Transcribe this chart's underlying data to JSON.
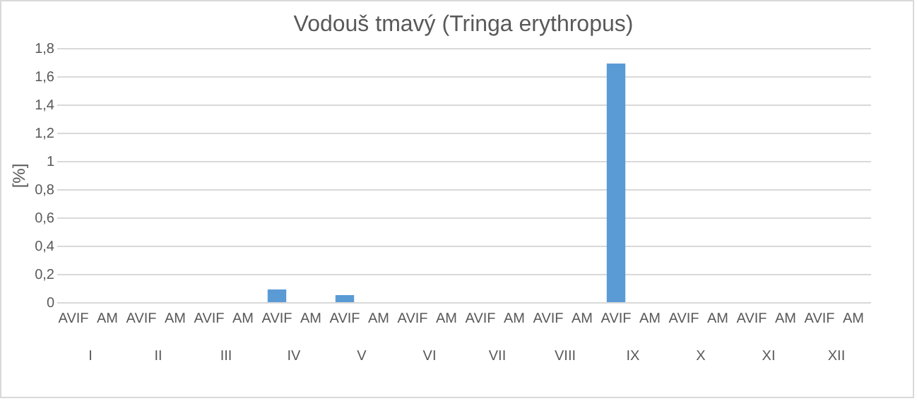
{
  "chart_data": {
    "type": "bar",
    "title": "Vodouš tmavý (Tringa erythropus)",
    "ylabel": "[%]",
    "categories": [
      "AVIF",
      "AM",
      "AVIF",
      "AM",
      "AVIF",
      "AM",
      "AVIF",
      "AM",
      "AVIF",
      "AM",
      "AVIF",
      "AM",
      "AVIF",
      "AM",
      "AVIF",
      "AM",
      "AVIF",
      "AM",
      "AVIF",
      "AM",
      "AVIF",
      "AM",
      "AVIF",
      "AM"
    ],
    "values": [
      0,
      0,
      0,
      0,
      0,
      0,
      0.09,
      0,
      0.05,
      0,
      0,
      0,
      0,
      0,
      0,
      0,
      1.69,
      0,
      0,
      0,
      0,
      0,
      0,
      0
    ],
    "color": "#5b9bd5",
    "annotations": [
      "I",
      "II",
      "III",
      "IV",
      "V",
      "VI",
      "VII",
      "VIII",
      "IX",
      "X",
      "XI",
      "XII"
    ],
    "ylim": [
      0,
      1.8
    ],
    "yticks": [
      0,
      {
        "value": 0.2,
        "label": "0,2"
      },
      {
        "value": 0.4,
        "label": "0,4"
      },
      {
        "value": 0.6,
        "label": "0,6"
      },
      {
        "value": 0.8,
        "label": "0,8"
      },
      1,
      {
        "value": 1.2,
        "label": "1,2"
      },
      {
        "value": 1.4,
        "label": "1,4"
      },
      {
        "value": 1.6,
        "label": "1,6"
      },
      {
        "value": 1.8,
        "label": "1,8"
      }
    ],
    "grid": "y"
  }
}
